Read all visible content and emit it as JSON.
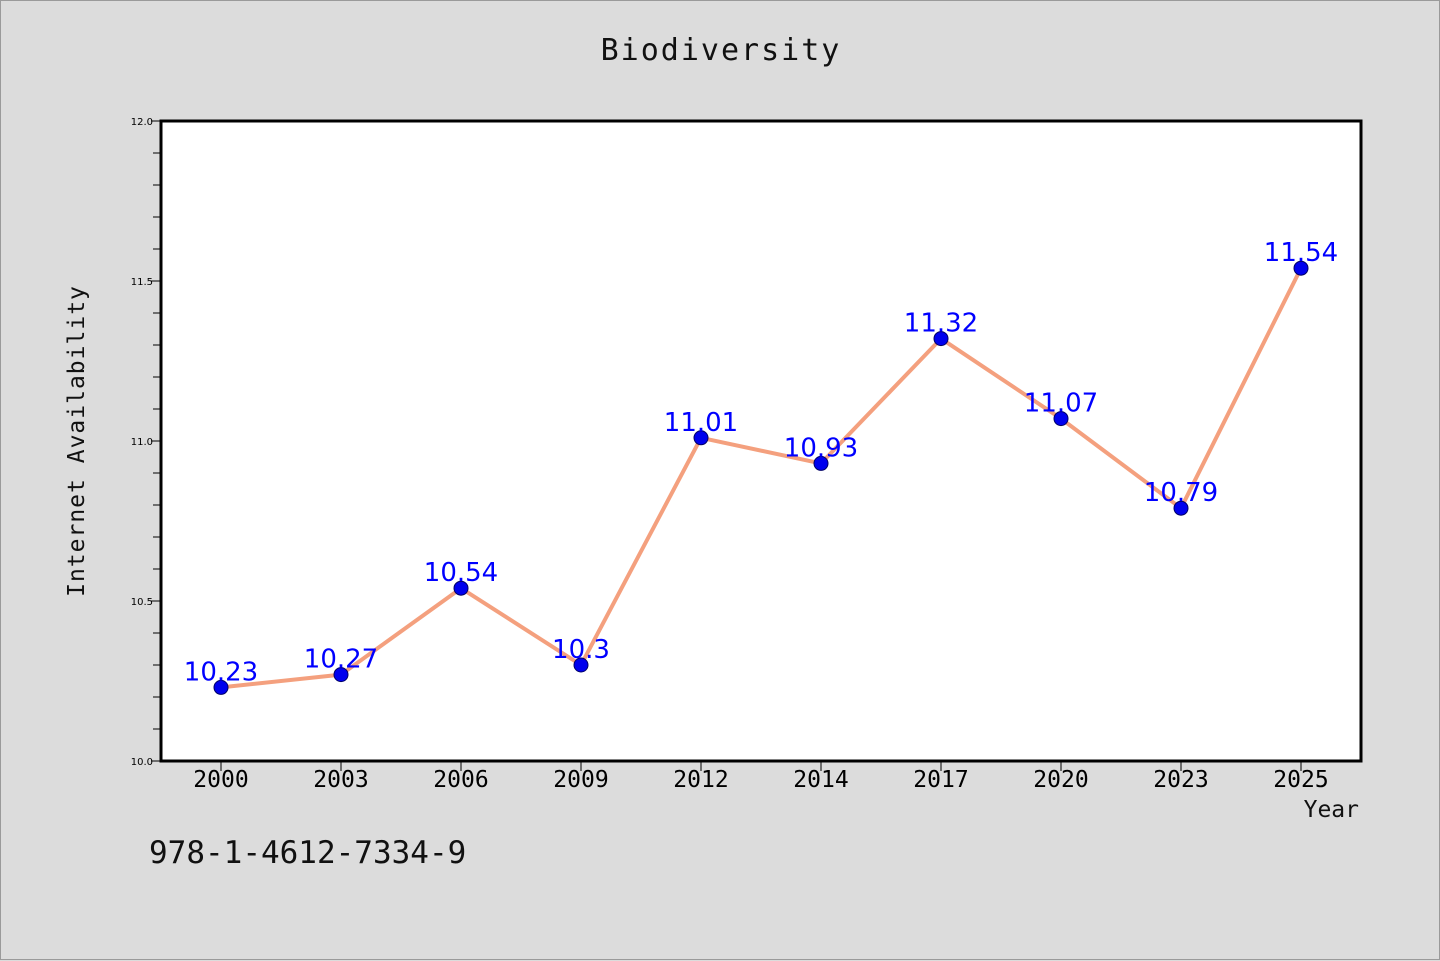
{
  "chart_data": {
    "type": "line",
    "title": "Biodiversity",
    "xlabel": "Year",
    "ylabel": "Internet Availability",
    "categories": [
      "2000",
      "2003",
      "2006",
      "2009",
      "2012",
      "2014",
      "2017",
      "2020",
      "2023",
      "2025"
    ],
    "series": [
      {
        "values": [
          10.23,
          10.27,
          10.54,
          10.3,
          11.01,
          10.93,
          11.32,
          11.07,
          10.79,
          11.54
        ],
        "data_labels": [
          "10.23",
          "10.27",
          "10.54",
          "10.3",
          "11.01",
          "10.93",
          "11.32",
          "11.07",
          "10.79",
          "11.54"
        ],
        "line_color": "#f4a07e",
        "marker_color": "#0000ee",
        "label_color": "#0000ff"
      }
    ],
    "ylim": [
      10.0,
      12.0
    ],
    "yticks": [
      "10.0",
      "10.5",
      "11.0",
      "11.5",
      "12.0"
    ],
    "grid": false,
    "legend": "none"
  },
  "footer": {
    "code": "978-1-4612-7334-9"
  }
}
